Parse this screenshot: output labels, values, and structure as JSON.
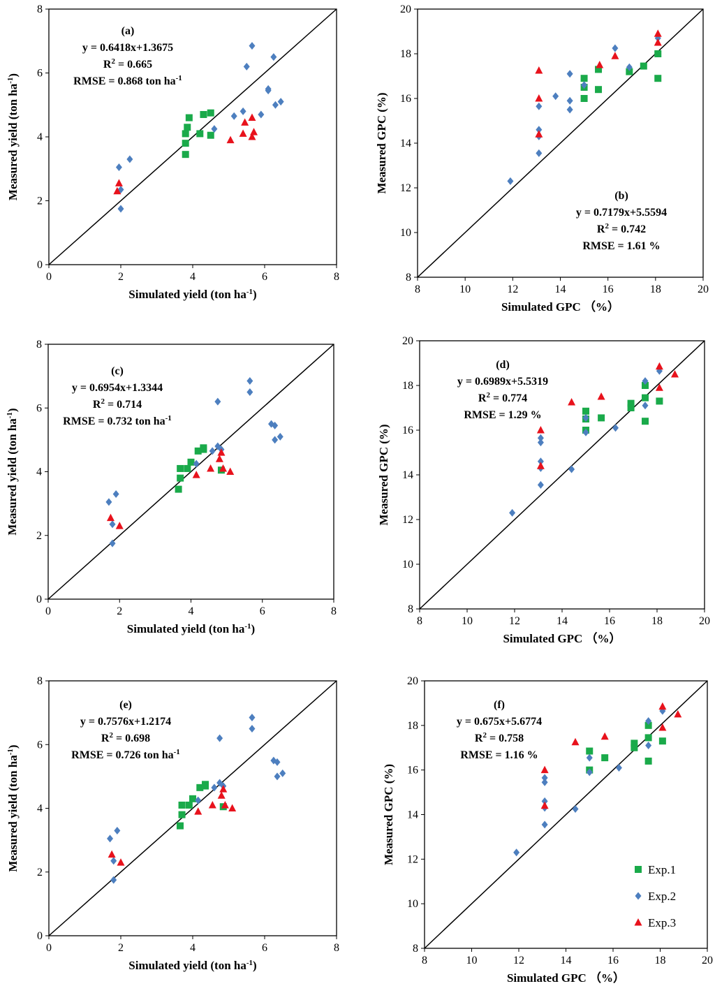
{
  "colors": {
    "exp1": "#1aaa4a",
    "exp2": "#4d7fbf",
    "exp3": "#e8121c",
    "axis": "#000000"
  },
  "legend": [
    {
      "key": "exp1",
      "label": "Exp.1",
      "marker": "square"
    },
    {
      "key": "exp2",
      "label": "Exp.2",
      "marker": "diamond"
    },
    {
      "key": "exp3",
      "label": "Exp.3",
      "marker": "triangle"
    }
  ],
  "chart_data": [
    {
      "id": "a",
      "type": "scatter",
      "panel_label": "(a)",
      "equation": "y = 0.6418x+1.3675",
      "r2_prefix": "R",
      "r2_value": " = 0.665",
      "rmse_text": "RMSE = 0.868 ton ha",
      "rmse_unit_sup": "-1",
      "xlabel": "Simulated yield (ton ha",
      "ylabel": "Measured yield (ton ha",
      "unit_sup": "-1",
      "unit_close": ")",
      "xlim": [
        0,
        8
      ],
      "ylim": [
        0,
        8
      ],
      "xticks": [
        0,
        2,
        4,
        6,
        8
      ],
      "yticks": [
        0,
        2,
        4,
        6,
        8
      ],
      "one_to_one": true,
      "series": [
        {
          "name": "Exp.1",
          "points": [
            [
              3.8,
              3.8
            ],
            [
              3.8,
              3.45
            ],
            [
              3.8,
              4.1
            ],
            [
              3.85,
              4.3
            ],
            [
              3.9,
              4.6
            ],
            [
              4.2,
              4.1
            ],
            [
              4.3,
              4.7
            ],
            [
              4.5,
              4.75
            ],
            [
              4.5,
              4.05
            ]
          ]
        },
        {
          "name": "Exp.2",
          "points": [
            [
              1.95,
              3.05
            ],
            [
              2.0,
              2.35
            ],
            [
              2.0,
              1.75
            ],
            [
              2.25,
              3.3
            ],
            [
              4.6,
              4.25
            ],
            [
              5.15,
              4.65
            ],
            [
              5.4,
              4.8
            ],
            [
              5.5,
              6.2
            ],
            [
              5.65,
              6.85
            ],
            [
              6.1,
              5.5
            ],
            [
              6.1,
              5.45
            ],
            [
              6.25,
              6.5
            ],
            [
              6.3,
              5.0
            ],
            [
              6.45,
              5.1
            ],
            [
              5.9,
              4.7
            ]
          ]
        },
        {
          "name": "Exp.3",
          "points": [
            [
              1.9,
              2.3
            ],
            [
              1.95,
              2.55
            ],
            [
              5.05,
              3.9
            ],
            [
              5.4,
              4.1
            ],
            [
              5.45,
              4.45
            ],
            [
              5.65,
              4.6
            ],
            [
              5.7,
              4.15
            ],
            [
              5.65,
              4.0
            ]
          ]
        }
      ]
    },
    {
      "id": "b",
      "type": "scatter",
      "panel_label": "(b)",
      "equation": "y = 0.7179x+5.5594",
      "r2_prefix": "R",
      "r2_value": " = 0.742",
      "rmse_text": "RMSE = 1.61 %",
      "rmse_unit_sup": "",
      "xlabel": "Simulated GPC （%）",
      "ylabel": "Measured GPC (%)",
      "unit_sup": "",
      "unit_close": "",
      "xlim": [
        8,
        20
      ],
      "ylim": [
        8,
        20
      ],
      "xticks": [
        8,
        10,
        12,
        14,
        16,
        18,
        20
      ],
      "yticks": [
        8,
        10,
        12,
        14,
        16,
        18,
        20
      ],
      "one_to_one": true,
      "series": [
        {
          "name": "Exp.1",
          "points": [
            [
              15.0,
              16.0
            ],
            [
              15.0,
              16.5
            ],
            [
              15.0,
              16.9
            ],
            [
              15.6,
              16.4
            ],
            [
              15.6,
              17.3
            ],
            [
              16.9,
              17.2
            ],
            [
              17.5,
              17.45
            ],
            [
              18.1,
              18.0
            ],
            [
              18.1,
              16.9
            ]
          ]
        },
        {
          "name": "Exp.2",
          "points": [
            [
              11.9,
              12.3
            ],
            [
              13.1,
              13.55
            ],
            [
              13.1,
              14.3
            ],
            [
              13.1,
              14.6
            ],
            [
              13.1,
              15.65
            ],
            [
              13.8,
              16.1
            ],
            [
              14.4,
              15.5
            ],
            [
              14.4,
              15.9
            ],
            [
              14.4,
              17.1
            ],
            [
              15.0,
              16.6
            ],
            [
              16.3,
              18.25
            ],
            [
              16.9,
              17.4
            ],
            [
              18.1,
              18.7
            ]
          ]
        },
        {
          "name": "Exp.3",
          "points": [
            [
              13.1,
              17.25
            ],
            [
              13.1,
              16.0
            ],
            [
              13.1,
              14.4
            ],
            [
              15.65,
              17.5
            ],
            [
              16.3,
              17.9
            ],
            [
              18.1,
              18.9
            ],
            [
              18.1,
              18.5
            ]
          ]
        }
      ]
    },
    {
      "id": "c",
      "type": "scatter",
      "panel_label": "(c)",
      "equation": "y = 0.6954x+1.3344",
      "r2_prefix": "R",
      "r2_value": " = 0.714",
      "rmse_text": "RMSE = 0.732 ton ha",
      "rmse_unit_sup": "-1",
      "xlabel": "Simulated yield (ton ha",
      "ylabel": "Measured yield (ton ha",
      "unit_sup": "-1",
      "unit_close": ")",
      "xlim": [
        0,
        8
      ],
      "ylim": [
        0,
        8
      ],
      "xticks": [
        0,
        2,
        4,
        6,
        8
      ],
      "yticks": [
        0,
        2,
        4,
        6,
        8
      ],
      "one_to_one": true,
      "series": [
        {
          "name": "Exp.1",
          "points": [
            [
              3.65,
              3.45
            ],
            [
              3.7,
              3.8
            ],
            [
              3.7,
              4.1
            ],
            [
              3.9,
              4.1
            ],
            [
              4.0,
              4.3
            ],
            [
              4.2,
              4.65
            ],
            [
              4.35,
              4.7
            ],
            [
              4.35,
              4.75
            ],
            [
              4.85,
              4.05
            ]
          ]
        },
        {
          "name": "Exp.2",
          "points": [
            [
              1.7,
              3.05
            ],
            [
              1.8,
              2.35
            ],
            [
              1.8,
              1.75
            ],
            [
              1.9,
              3.3
            ],
            [
              4.15,
              4.25
            ],
            [
              4.6,
              4.65
            ],
            [
              4.75,
              4.8
            ],
            [
              4.75,
              6.2
            ],
            [
              5.65,
              6.85
            ],
            [
              5.65,
              6.5
            ],
            [
              6.25,
              5.5
            ],
            [
              6.35,
              5.45
            ],
            [
              6.35,
              5.0
            ],
            [
              6.5,
              5.1
            ],
            [
              4.85,
              4.7
            ]
          ]
        },
        {
          "name": "Exp.3",
          "points": [
            [
              1.75,
              2.55
            ],
            [
              2.0,
              2.3
            ],
            [
              4.15,
              3.9
            ],
            [
              4.55,
              4.1
            ],
            [
              4.8,
              4.4
            ],
            [
              4.85,
              4.6
            ],
            [
              4.9,
              4.1
            ],
            [
              5.1,
              4.0
            ]
          ]
        }
      ]
    },
    {
      "id": "d",
      "type": "scatter",
      "panel_label": "(d)",
      "equation": "y = 0.6989x+5.5319",
      "r2_prefix": "R",
      "r2_value": " = 0.774",
      "rmse_text": "RMSE = 1.29 %",
      "rmse_unit_sup": "",
      "xlabel": "Simulated GPC （%）",
      "ylabel": "Measured GPC (%)",
      "unit_sup": "",
      "unit_close": "",
      "xlim": [
        8,
        20
      ],
      "ylim": [
        8,
        20
      ],
      "xticks": [
        8,
        10,
        12,
        14,
        16,
        18,
        20
      ],
      "yticks": [
        8,
        10,
        12,
        14,
        16,
        18,
        20
      ],
      "one_to_one": true,
      "series": [
        {
          "name": "Exp.1",
          "points": [
            [
              15.0,
              16.0
            ],
            [
              15.0,
              16.5
            ],
            [
              15.0,
              16.85
            ],
            [
              15.65,
              16.55
            ],
            [
              16.9,
              17.0
            ],
            [
              16.9,
              17.2
            ],
            [
              17.5,
              16.4
            ],
            [
              17.5,
              17.45
            ],
            [
              17.5,
              18.0
            ],
            [
              18.1,
              17.3
            ]
          ]
        },
        {
          "name": "Exp.2",
          "points": [
            [
              11.9,
              12.3
            ],
            [
              13.1,
              13.55
            ],
            [
              13.1,
              14.3
            ],
            [
              13.1,
              14.6
            ],
            [
              13.1,
              15.45
            ],
            [
              13.1,
              15.65
            ],
            [
              14.4,
              14.25
            ],
            [
              15.0,
              15.9
            ],
            [
              15.0,
              16.55
            ],
            [
              16.25,
              16.1
            ],
            [
              17.5,
              17.1
            ],
            [
              17.5,
              18.2
            ],
            [
              18.1,
              18.65
            ]
          ]
        },
        {
          "name": "Exp.3",
          "points": [
            [
              13.1,
              16.0
            ],
            [
              13.1,
              14.4
            ],
            [
              14.4,
              17.25
            ],
            [
              15.65,
              17.5
            ],
            [
              18.1,
              17.9
            ],
            [
              18.1,
              18.85
            ],
            [
              18.75,
              18.5
            ]
          ]
        }
      ]
    },
    {
      "id": "e",
      "type": "scatter",
      "panel_label": "(e)",
      "equation": "y = 0.7576x+1.2174",
      "r2_prefix": "R",
      "r2_value": " = 0.698",
      "rmse_text": "RMSE = 0.726 ton ha",
      "rmse_unit_sup": "-1",
      "xlabel": "Simulated yield (ton ha",
      "ylabel": "Measured yield (ton ha",
      "unit_sup": "-1",
      "unit_close": ")",
      "xlim": [
        0,
        8
      ],
      "ylim": [
        0,
        8
      ],
      "xticks": [
        0,
        2,
        4,
        6,
        8
      ],
      "yticks": [
        0,
        2,
        4,
        6,
        8
      ],
      "one_to_one": true,
      "series": [
        {
          "name": "Exp.1",
          "points": [
            [
              3.65,
              3.45
            ],
            [
              3.7,
              3.8
            ],
            [
              3.7,
              4.1
            ],
            [
              3.9,
              4.1
            ],
            [
              4.0,
              4.3
            ],
            [
              4.2,
              4.65
            ],
            [
              4.35,
              4.7
            ],
            [
              4.35,
              4.75
            ],
            [
              4.85,
              4.05
            ]
          ]
        },
        {
          "name": "Exp.2",
          "points": [
            [
              1.7,
              3.05
            ],
            [
              1.8,
              2.35
            ],
            [
              1.8,
              1.75
            ],
            [
              1.9,
              3.3
            ],
            [
              4.15,
              4.25
            ],
            [
              4.6,
              4.65
            ],
            [
              4.75,
              4.8
            ],
            [
              4.75,
              6.2
            ],
            [
              5.65,
              6.85
            ],
            [
              5.65,
              6.5
            ],
            [
              6.25,
              5.5
            ],
            [
              6.35,
              5.45
            ],
            [
              6.35,
              5.0
            ],
            [
              6.5,
              5.1
            ],
            [
              4.85,
              4.7
            ]
          ]
        },
        {
          "name": "Exp.3",
          "points": [
            [
              1.75,
              2.55
            ],
            [
              2.0,
              2.3
            ],
            [
              4.15,
              3.9
            ],
            [
              4.55,
              4.1
            ],
            [
              4.8,
              4.4
            ],
            [
              4.85,
              4.6
            ],
            [
              4.9,
              4.1
            ],
            [
              5.1,
              4.0
            ]
          ]
        }
      ]
    },
    {
      "id": "f",
      "type": "scatter",
      "panel_label": "(f)",
      "equation": "y = 0.675x+5.6774",
      "r2_prefix": "R",
      "r2_value": " = 0.758",
      "rmse_text": "RMSE = 1.16 %",
      "rmse_unit_sup": "",
      "xlabel": "Simulated GPC （%）",
      "ylabel": "Measured GPC (%)",
      "unit_sup": "",
      "unit_close": "",
      "xlim": [
        8,
        20
      ],
      "ylim": [
        8,
        20
      ],
      "xticks": [
        8,
        10,
        12,
        14,
        16,
        18,
        20
      ],
      "yticks": [
        8,
        10,
        12,
        14,
        16,
        18,
        20
      ],
      "one_to_one": true,
      "legend": "bottom-right",
      "series": [
        {
          "name": "Exp.1",
          "points": [
            [
              15.0,
              16.0
            ],
            [
              15.0,
              16.85
            ],
            [
              15.65,
              16.55
            ],
            [
              16.9,
              17.0
            ],
            [
              16.9,
              17.2
            ],
            [
              17.5,
              16.4
            ],
            [
              17.5,
              17.45
            ],
            [
              17.5,
              18.0
            ],
            [
              18.1,
              17.3
            ]
          ]
        },
        {
          "name": "Exp.2",
          "points": [
            [
              11.9,
              12.3
            ],
            [
              13.1,
              13.55
            ],
            [
              13.1,
              14.3
            ],
            [
              13.1,
              14.6
            ],
            [
              13.1,
              15.45
            ],
            [
              13.1,
              15.65
            ],
            [
              14.4,
              14.25
            ],
            [
              15.0,
              15.9
            ],
            [
              15.0,
              16.55
            ],
            [
              16.25,
              16.1
            ],
            [
              17.5,
              17.1
            ],
            [
              17.5,
              18.2
            ],
            [
              18.1,
              18.65
            ]
          ]
        },
        {
          "name": "Exp.3",
          "points": [
            [
              13.1,
              16.0
            ],
            [
              13.1,
              14.4
            ],
            [
              14.4,
              17.25
            ],
            [
              15.65,
              17.5
            ],
            [
              18.1,
              17.9
            ],
            [
              18.1,
              18.85
            ],
            [
              18.75,
              18.5
            ]
          ]
        }
      ]
    }
  ]
}
